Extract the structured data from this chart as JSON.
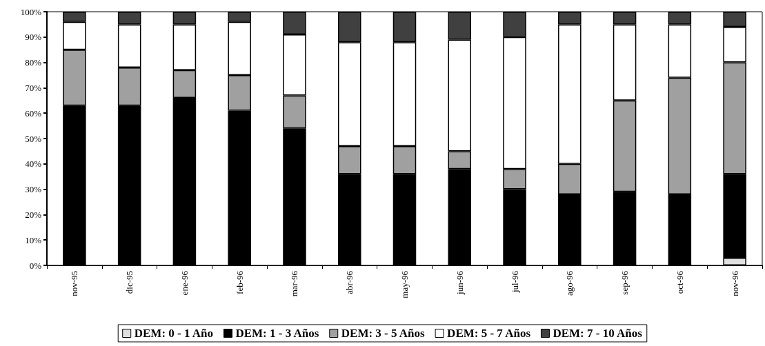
{
  "chart_data": {
    "type": "bar",
    "stacked": true,
    "categories": [
      "nov-95",
      "dic-95",
      "ene-96",
      "feb-96",
      "mar-96",
      "abr-96",
      "may-96",
      "jun-96",
      "jul-96",
      "ago-96",
      "sep-96",
      "oct-96",
      "nov-96"
    ],
    "series": [
      {
        "name": "DEM: 0 - 1 Año",
        "color": "#e0e0e0",
        "values": [
          0,
          0,
          0,
          0,
          0,
          0,
          0,
          0,
          0,
          0,
          0,
          0,
          3
        ]
      },
      {
        "name": "DEM: 1 - 3 Años",
        "color": "#000000",
        "values": [
          63,
          63,
          66,
          61,
          54,
          36,
          36,
          38,
          30,
          28,
          29,
          28,
          33
        ]
      },
      {
        "name": "DEM: 3 - 5 Años",
        "color": "#a0a0a0",
        "values": [
          22,
          15,
          11,
          14,
          13,
          11,
          11,
          7,
          8,
          12,
          36,
          46,
          44
        ]
      },
      {
        "name": "DEM: 5 - 7 Años",
        "color": "#ffffff",
        "values": [
          11,
          17,
          18,
          21,
          24,
          41,
          41,
          44,
          52,
          55,
          30,
          21,
          14
        ]
      },
      {
        "name": "DEM: 7 - 10 Años",
        "color": "#404040",
        "values": [
          4,
          5,
          5,
          4,
          9,
          12,
          12,
          11,
          10,
          5,
          5,
          5,
          6
        ]
      }
    ],
    "ylim": [
      0,
      100
    ],
    "yticks": [
      {
        "value": 0,
        "label": "0%"
      },
      {
        "value": 10,
        "label": "10%"
      },
      {
        "value": 20,
        "label": "20%"
      },
      {
        "value": 30,
        "label": "30%"
      },
      {
        "value": 40,
        "label": "40%"
      },
      {
        "value": 50,
        "label": "50%"
      },
      {
        "value": 60,
        "label": "60%"
      },
      {
        "value": 70,
        "label": "70%"
      },
      {
        "value": 80,
        "label": "80%"
      },
      {
        "value": 90,
        "label": "90%"
      },
      {
        "value": 100,
        "label": "100%"
      }
    ],
    "grid": false,
    "legend": "bottom"
  }
}
